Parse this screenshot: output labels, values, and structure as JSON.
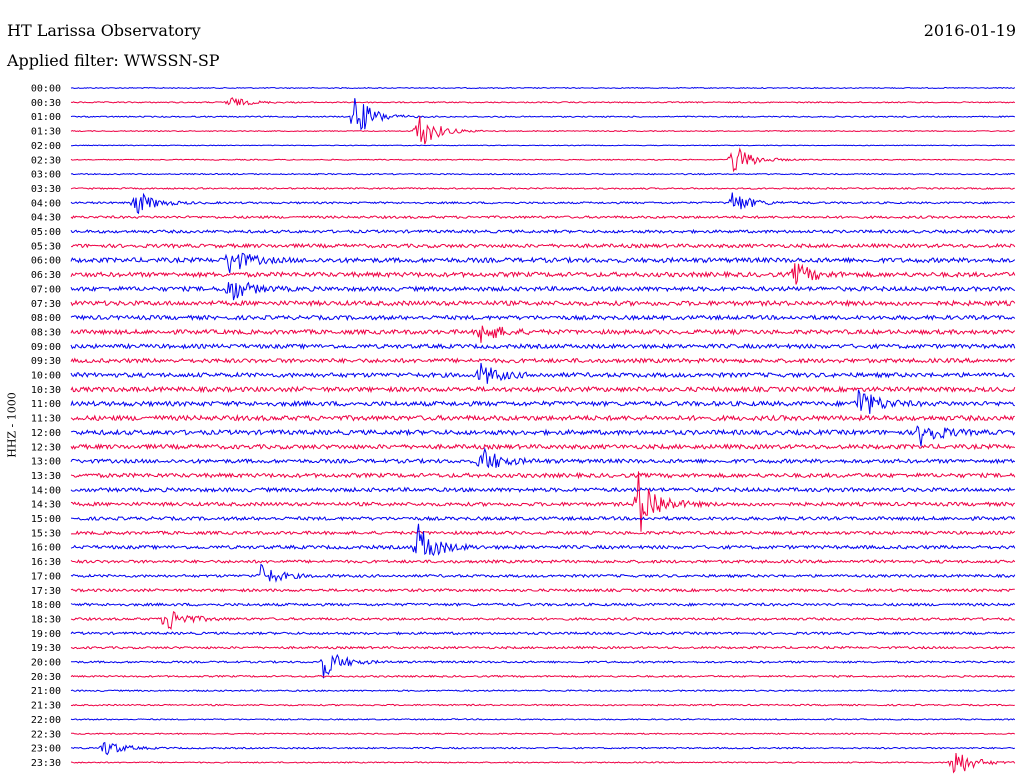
{
  "header": {
    "title": "HT Larissa Observatory",
    "date": "2016-01-19",
    "filter": "Applied filter: WWSSN-SP"
  },
  "chart_data": {
    "type": "line",
    "title": "HT Larissa Observatory",
    "ylabel": "HHZ - 1000",
    "row_interval_minutes": 30,
    "rows": [
      "00:00",
      "00:30",
      "01:00",
      "01:30",
      "02:00",
      "02:30",
      "03:00",
      "03:30",
      "04:00",
      "04:30",
      "05:00",
      "05:30",
      "06:00",
      "06:30",
      "07:00",
      "07:30",
      "08:00",
      "08:30",
      "09:00",
      "09:30",
      "10:00",
      "10:30",
      "11:00",
      "11:30",
      "12:00",
      "12:30",
      "13:00",
      "13:30",
      "14:00",
      "14:30",
      "15:00",
      "15:30",
      "16:00",
      "16:30",
      "17:00",
      "17:30",
      "18:00",
      "18:30",
      "19:00",
      "19:30",
      "20:00",
      "20:30",
      "21:00",
      "21:30",
      "22:00",
      "22:30",
      "23:00",
      "23:30"
    ],
    "colors": [
      "#0000ee",
      "#ee0044"
    ],
    "relative_noise_level": [
      0.2,
      0.25,
      0.25,
      0.2,
      0.15,
      0.2,
      0.25,
      0.3,
      0.4,
      0.5,
      0.6,
      0.75,
      0.95,
      0.95,
      0.9,
      0.95,
      0.85,
      0.9,
      0.85,
      0.85,
      0.9,
      0.95,
      0.95,
      1.0,
      0.95,
      0.9,
      0.8,
      0.85,
      0.8,
      0.75,
      0.7,
      0.65,
      0.7,
      0.6,
      0.55,
      0.55,
      0.55,
      0.5,
      0.5,
      0.45,
      0.4,
      0.35,
      0.3,
      0.3,
      0.25,
      0.25,
      0.3,
      0.25
    ],
    "events": [
      {
        "row": "00:30",
        "minute": 5,
        "amplitude": 0.5
      },
      {
        "row": "01:00",
        "minute": 9,
        "amplitude": 2.0
      },
      {
        "row": "01:30",
        "minute": 11,
        "amplitude": 1.8
      },
      {
        "row": "02:30",
        "minute": 21,
        "amplitude": 1.5
      },
      {
        "row": "04:00",
        "minute": 2,
        "amplitude": 1.2
      },
      {
        "row": "04:00",
        "minute": 21,
        "amplitude": 1.0
      },
      {
        "row": "06:00",
        "minute": 5,
        "amplitude": 1.2
      },
      {
        "row": "06:30",
        "minute": 23,
        "amplitude": 1.0
      },
      {
        "row": "07:00",
        "minute": 5,
        "amplitude": 1.2
      },
      {
        "row": "08:30",
        "minute": 13,
        "amplitude": 1.0
      },
      {
        "row": "10:00",
        "minute": 13,
        "amplitude": 1.0
      },
      {
        "row": "11:00",
        "minute": 25,
        "amplitude": 1.5
      },
      {
        "row": "12:00",
        "minute": 27,
        "amplitude": 1.2
      },
      {
        "row": "13:00",
        "minute": 13,
        "amplitude": 1.3
      },
      {
        "row": "14:30",
        "minute": 18,
        "amplitude": 3.0
      },
      {
        "row": "16:00",
        "minute": 11,
        "amplitude": 2.0
      },
      {
        "row": "17:00",
        "minute": 6,
        "amplitude": 1.0
      },
      {
        "row": "18:30",
        "minute": 3,
        "amplitude": 1.2
      },
      {
        "row": "20:00",
        "minute": 8,
        "amplitude": 1.4
      },
      {
        "row": "23:00",
        "minute": 1,
        "amplitude": 0.8
      },
      {
        "row": "23:30",
        "minute": 28,
        "amplitude": 1.5
      }
    ]
  }
}
